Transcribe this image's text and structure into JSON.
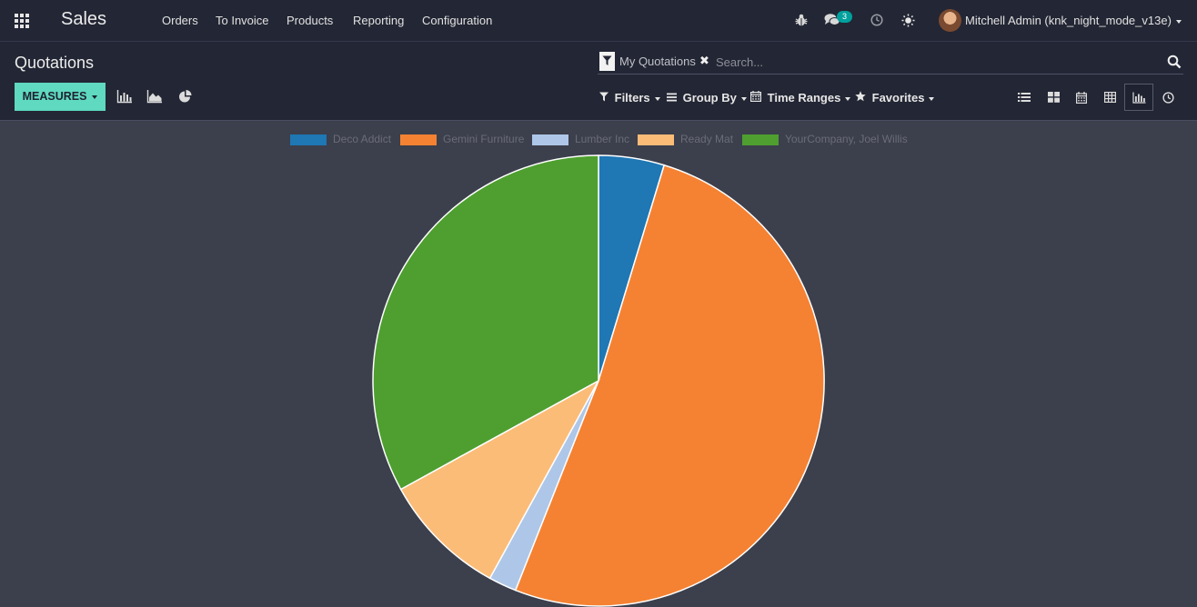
{
  "navbar": {
    "app_name": "Sales",
    "menu": [
      "Orders",
      "To Invoice",
      "Products",
      "Reporting",
      "Configuration"
    ],
    "messages_count": "3",
    "user_name": "Mitchell Admin (knk_night_mode_v13e)",
    "icons": {
      "apps": "apps-grid-icon",
      "debug": "bug-icon",
      "messages": "comments-icon",
      "activities": "clock-icon",
      "theme": "sun-icon"
    }
  },
  "control_panel": {
    "breadcrumb": "Quotations",
    "facet": "My Quotations",
    "search_placeholder": "Search...",
    "measures_label": "MEASURES",
    "filters_label": "Filters",
    "groupby_label": "Group By",
    "timeranges_label": "Time Ranges",
    "favorites_label": "Favorites"
  },
  "chart_data": {
    "type": "pie",
    "labels": [
      "Deco Addict",
      "Gemini Furniture",
      "Lumber Inc",
      "Ready Mat",
      "YourCompany, Joel Willis"
    ],
    "values": [
      4.7,
      51.3,
      2.0,
      9.0,
      33.0
    ],
    "colors": [
      "#1f77b4",
      "#f58232",
      "#aec7e8",
      "#fbbc78",
      "#4e9f2f"
    ],
    "legend_position": "top"
  }
}
